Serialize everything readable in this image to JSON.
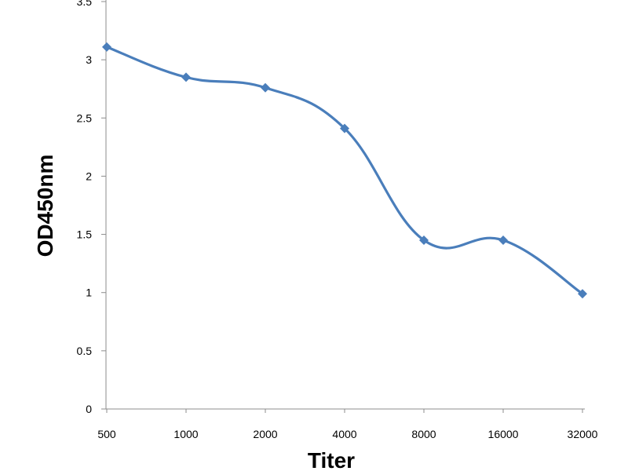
{
  "chart_data": {
    "type": "line",
    "title": "",
    "xlabel": "Titer",
    "ylabel": "OD450nm",
    "categories": [
      "500",
      "1000",
      "2000",
      "4000",
      "8000",
      "16000",
      "32000"
    ],
    "series": [
      {
        "values": [
          3.11,
          2.85,
          2.76,
          2.41,
          1.45,
          1.45,
          0.99
        ],
        "color": "#4a7ebb",
        "marker": "diamond",
        "smooth": true
      }
    ],
    "ylim": [
      0,
      3.5
    ],
    "yticks": [
      "0",
      "0.5",
      "1",
      "1.5",
      "2",
      "2.5",
      "3",
      "3.5"
    ],
    "grid": false,
    "legend": "none"
  }
}
